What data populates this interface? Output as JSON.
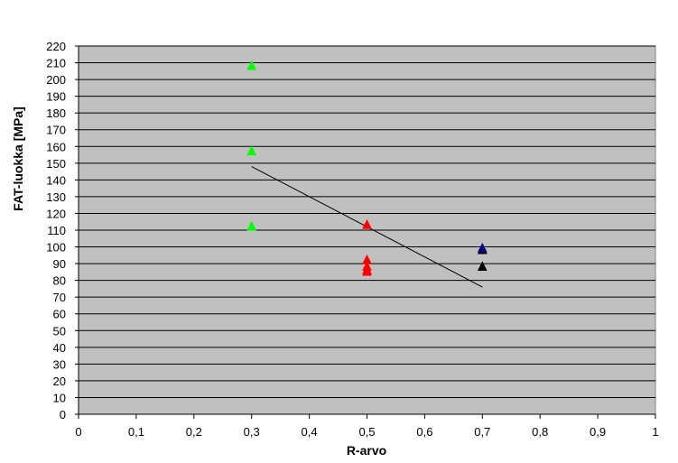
{
  "chart_data": {
    "type": "scatter",
    "title": "",
    "xlabel": "R-arvo",
    "ylabel": "FAT-luokka [MPa]",
    "xlim": [
      0,
      1
    ],
    "ylim": [
      0,
      220
    ],
    "x_ticks": [
      0,
      0.1,
      0.2,
      0.3,
      0.4,
      0.5,
      0.6,
      0.7,
      0.8,
      0.9,
      1
    ],
    "x_tick_labels": [
      "0",
      "0,1",
      "0,2",
      "0,3",
      "0,4",
      "0,5",
      "0,6",
      "0,7",
      "0,8",
      "0,9",
      "1"
    ],
    "y_ticks": [
      0,
      10,
      20,
      30,
      40,
      50,
      60,
      70,
      80,
      90,
      100,
      110,
      120,
      130,
      140,
      150,
      160,
      170,
      180,
      190,
      200,
      210,
      220
    ],
    "y_tick_labels": [
      "0",
      "10",
      "20",
      "30",
      "40",
      "50",
      "60",
      "70",
      "80",
      "90",
      "100",
      "110",
      "120",
      "130",
      "140",
      "150",
      "160",
      "170",
      "180",
      "190",
      "200",
      "210",
      "220"
    ],
    "grid": "horizontal",
    "legend": "none",
    "plot_background": "#c0c0c0",
    "series": [
      {
        "color": "#00ff00",
        "marker": "triangle",
        "x": [
          0.3,
          0.3,
          0.3
        ],
        "y": [
          208,
          157,
          112
        ]
      },
      {
        "color": "#ff0000",
        "marker": "triangle",
        "x": [
          0.5,
          0.5,
          0.5,
          0.5,
          0.5
        ],
        "y": [
          113,
          92,
          88,
          86,
          85
        ]
      },
      {
        "color": "#000000",
        "marker": "triangle",
        "x": [
          0.7,
          0.7
        ],
        "y": [
          98,
          88
        ]
      },
      {
        "color": "#000080",
        "marker": "triangle",
        "x": [
          0.7
        ],
        "y": [
          99
        ]
      }
    ],
    "trendline": {
      "color": "#000000",
      "x": [
        0.3,
        0.7
      ],
      "y": [
        148,
        76
      ]
    }
  }
}
